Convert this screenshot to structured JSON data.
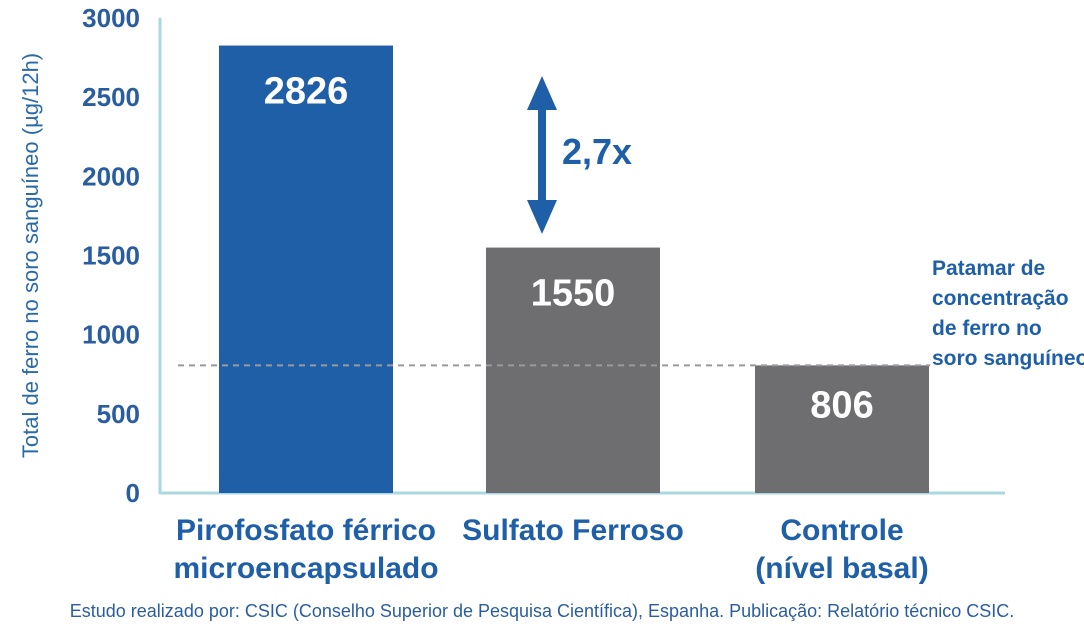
{
  "chart_data": {
    "type": "bar",
    "categories": [
      [
        "Pirofosfato férrico",
        "microencapsulado"
      ],
      [
        "Sulfato Ferroso"
      ],
      [
        "Controle",
        "(nível basal)"
      ]
    ],
    "values": [
      2826,
      1550,
      806
    ],
    "data_labels": [
      "2826",
      "1550",
      "806"
    ],
    "bar_colors": [
      "#1f5fa8",
      "#6e6e70",
      "#6e6e70"
    ],
    "ylabel": "Total de ferro no soro sanguíneo (µg/12h)",
    "yticks": [
      0,
      500,
      1000,
      1500,
      2000,
      2500,
      3000
    ],
    "ylim": [
      0,
      3000
    ],
    "grid": false,
    "axis_color": "#a9d8de",
    "threshold": {
      "value": 806,
      "label": [
        "Patamar de",
        "concentração",
        "de ferro no",
        "soro sanguíneo"
      ]
    },
    "comparison": {
      "label": "2,7x",
      "from_category": 0,
      "to_category": 1
    }
  },
  "source_note": "Estudo realizado por: CSIC (Conselho Superior de Pesquisa Científica), Espanha. Publicação: Relatório técnico CSIC."
}
